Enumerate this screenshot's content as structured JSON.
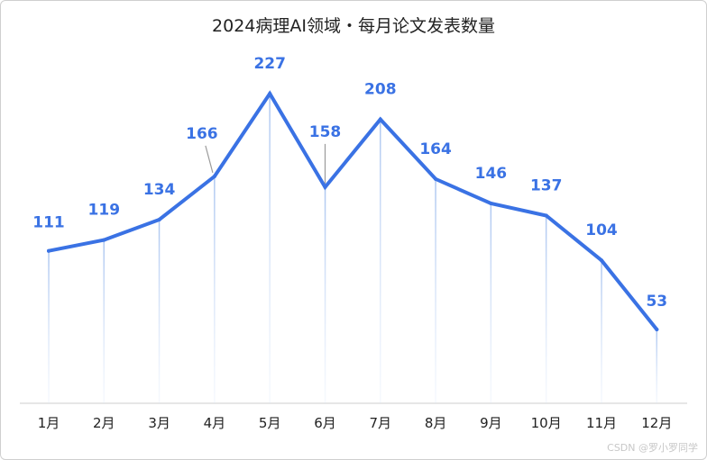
{
  "chart_data": {
    "type": "line",
    "title": "2024病理AI领域・每月论文发表数量",
    "xlabel": "",
    "ylabel": "",
    "categories": [
      "1月",
      "2月",
      "3月",
      "4月",
      "5月",
      "6月",
      "7月",
      "8月",
      "9月",
      "10月",
      "11月",
      "12月"
    ],
    "series": [
      {
        "values": [
          111,
          119,
          134,
          166,
          227,
          158,
          208,
          164,
          146,
          137,
          104,
          53
        ]
      }
    ],
    "ylim": [
      0,
      250
    ],
    "grid": false,
    "data_labels": true,
    "colors": {
      "line": "#3a72e4",
      "label": "#3a72e4",
      "drop_line": "#b9d0f2",
      "axis": "#cccccc",
      "tick_label": "#222222"
    }
  },
  "watermark": "CSDN @罗小罗同学"
}
